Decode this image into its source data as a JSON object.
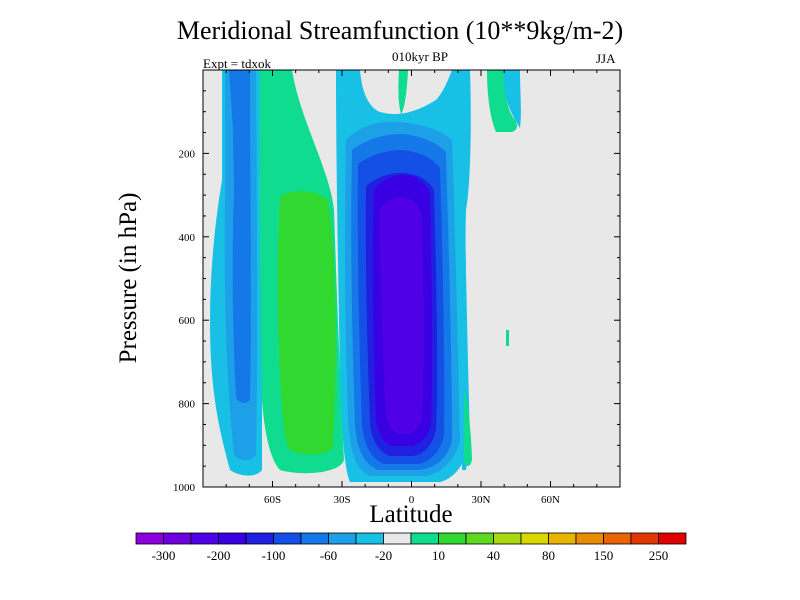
{
  "chart_data": {
    "type": "contour",
    "title": "Meridional Streamfunction (10**9kg/m-2)",
    "subtitle": "010kyr BP",
    "left_annotation": "Expt = tdxok",
    "right_annotation": "JJA",
    "xlabel": "Latitude",
    "ylabel": "Pressure (in hPa)",
    "x_ticks": [
      "60S",
      "30S",
      "0",
      "30N",
      "60N"
    ],
    "x_tick_values": [
      -60,
      -30,
      0,
      30,
      60
    ],
    "xlim": [
      -90,
      90
    ],
    "y_ticks": [
      "200",
      "400",
      "600",
      "800",
      "1000"
    ],
    "y_tick_values": [
      200,
      400,
      600,
      800,
      1000
    ],
    "ylim": [
      0,
      1000
    ],
    "y_reversed": true,
    "colorbar": {
      "labels": [
        "-300",
        "-200",
        "-100",
        "-60",
        "-20",
        "10",
        "40",
        "80",
        "150",
        "250"
      ],
      "colors": [
        "#8c00e0",
        "#6e00e0",
        "#5000e6",
        "#3a00e4",
        "#2020e0",
        "#1450e6",
        "#1478e8",
        "#1ea0e8",
        "#18c0e6",
        "#e8e8e8",
        "#10dc90",
        "#30d830",
        "#60d820",
        "#a8d810",
        "#d8d800",
        "#e8b400",
        "#e88c00",
        "#e86400",
        "#e03800",
        "#e00000"
      ]
    },
    "regions": [
      {
        "level": "-20",
        "color": "#18c0e6",
        "lat": [
          -82,
          -55
        ],
        "p": [
          0,
          990
        ]
      },
      {
        "level": "-60",
        "color": "#1ea0e8",
        "lat": [
          -77,
          -60
        ],
        "p": [
          0,
          960
        ]
      },
      {
        "level": "-100",
        "color": "#1478e8",
        "lat": [
          -74,
          -65
        ],
        "p": [
          0,
          860
        ]
      },
      {
        "level": "10",
        "color": "#10dc90",
        "lat": [
          -52,
          -23
        ],
        "p": [
          0,
          990
        ]
      },
      {
        "level": "40",
        "color": "#30d830",
        "lat": [
          -50,
          -30
        ],
        "p": [
          280,
          960
        ]
      },
      {
        "level": "-20",
        "color": "#18c0e6",
        "lat": [
          -28,
          22
        ],
        "p": [
          0,
          1000
        ]
      },
      {
        "level": "-100",
        "color": "#2020e0",
        "lat": [
          -17,
          12
        ],
        "p": [
          200,
          980
        ]
      },
      {
        "level": "-200",
        "color": "#5000e6",
        "lat": [
          -12,
          8
        ],
        "p": [
          300,
          950
        ]
      },
      {
        "level": "10",
        "color": "#10dc90",
        "lat": [
          32,
          42
        ],
        "p": [
          0,
          130
        ]
      }
    ]
  }
}
